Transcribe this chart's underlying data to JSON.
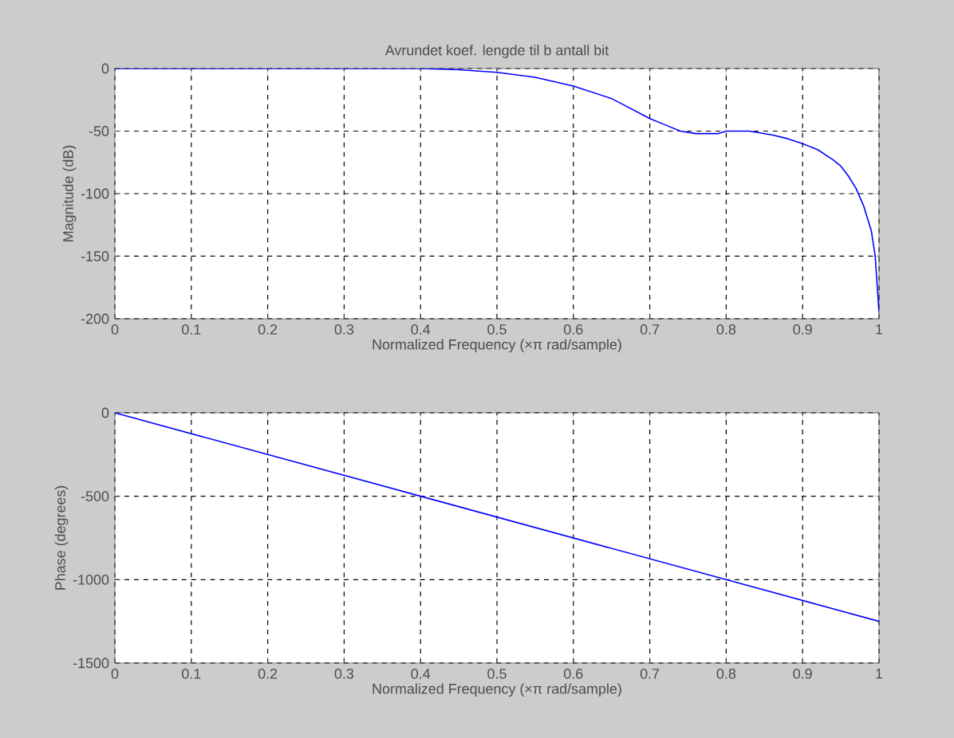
{
  "chart_data": [
    {
      "type": "line",
      "title": "Avrundet koef. lengde til b antall bit",
      "xlabel": "Normalized Frequency  (×π rad/sample)",
      "ylabel": "Magnitude (dB)",
      "x": [
        0,
        0.1,
        0.2,
        0.3,
        0.35,
        0.4,
        0.45,
        0.5,
        0.55,
        0.6,
        0.65,
        0.7,
        0.72,
        0.74,
        0.76,
        0.79,
        0.8,
        0.83,
        0.86,
        0.88,
        0.9,
        0.92,
        0.94,
        0.95,
        0.96,
        0.97,
        0.98,
        0.99,
        0.995,
        1
      ],
      "series": [
        {
          "color": "#0000ff",
          "values": [
            0,
            0,
            0,
            0,
            0,
            0,
            -1,
            -3,
            -7,
            -14,
            -24,
            -40,
            -45,
            -50,
            -52,
            -52,
            -50,
            -50,
            -53,
            -56,
            -60,
            -65,
            -73,
            -78,
            -86,
            -96,
            -110,
            -130,
            -150,
            -195
          ]
        }
      ],
      "xlim": [
        0,
        1
      ],
      "xticks": [
        0,
        0.1,
        0.2,
        0.3,
        0.4,
        0.5,
        0.6,
        0.7,
        0.8,
        0.9,
        1
      ],
      "ylim": [
        -200,
        0
      ],
      "yticks": [
        -200,
        -150,
        -100,
        -50,
        0
      ],
      "grid": true,
      "line_style": "solid"
    },
    {
      "type": "line",
      "xlabel": "Normalized Frequency  (×π rad/sample)",
      "ylabel": "Phase (degrees)",
      "x": [
        0,
        0.2,
        0.4,
        0.6,
        0.8,
        1
      ],
      "series": [
        {
          "color": "#0000ff",
          "values": [
            0,
            -250,
            -500,
            -750,
            -1000,
            -1250
          ]
        }
      ],
      "xlim": [
        0,
        1
      ],
      "xticks": [
        0,
        0.1,
        0.2,
        0.3,
        0.4,
        0.5,
        0.6,
        0.7,
        0.8,
        0.9,
        1
      ],
      "ylim": [
        -1500,
        0
      ],
      "yticks": [
        -1500,
        -1000,
        -500,
        0
      ],
      "grid": true,
      "line_style": "solid"
    }
  ]
}
